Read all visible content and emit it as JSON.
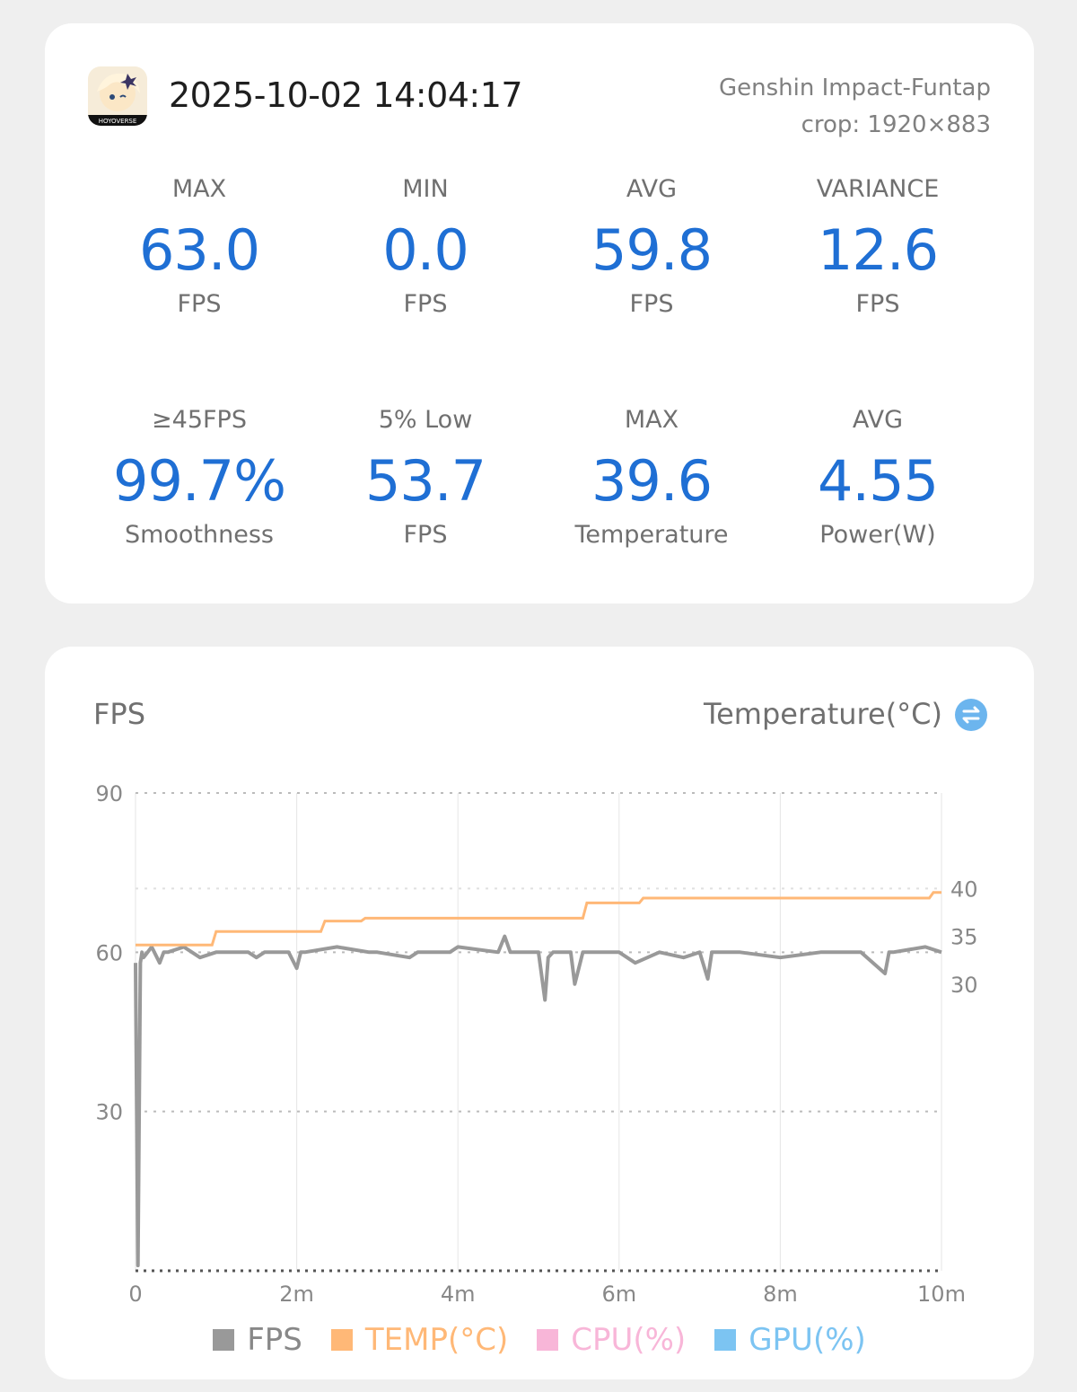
{
  "header": {
    "timestamp": "2025-10-02 14:04:17",
    "game_name": "Genshin Impact-Funtap",
    "crop": "crop: 1920×883",
    "icon_text": "HOYOVERSE"
  },
  "stats": [
    {
      "label": "MAX",
      "value": "63.0",
      "unit": "FPS"
    },
    {
      "label": "MIN",
      "value": "0.0",
      "unit": "FPS"
    },
    {
      "label": "AVG",
      "value": "59.8",
      "unit": "FPS"
    },
    {
      "label": "VARIANCE",
      "value": "12.6",
      "unit": "FPS"
    },
    {
      "label": "≥45FPS",
      "value": "99.7%",
      "unit": "Smoothness"
    },
    {
      "label": "5% Low",
      "value": "53.7",
      "unit": "FPS"
    },
    {
      "label": "MAX",
      "value": "39.6",
      "unit": "Temperature"
    },
    {
      "label": "AVG",
      "value": "4.55",
      "unit": "Power(W)"
    }
  ],
  "chart_header": {
    "left_title": "FPS",
    "right_title": "Temperature(°C)"
  },
  "colors": {
    "accent": "#1f6fd4",
    "fps": "#999999",
    "temp": "#ffb877",
    "cpu": "#f8b6d8",
    "gpu": "#7cc4f2"
  },
  "chart_data": {
    "type": "line",
    "xlabel": "",
    "ylabel": "FPS",
    "y2label": "Temperature(°C)",
    "x_ticks": [
      "0",
      "2m",
      "4m",
      "6m",
      "8m",
      "10m"
    ],
    "x_tick_values": [
      0,
      2,
      4,
      6,
      8,
      10
    ],
    "xlim": [
      0,
      10
    ],
    "y_ticks": [
      "90",
      "60",
      "30"
    ],
    "y_tick_values": [
      90,
      60,
      30,
      0
    ],
    "ylim": [
      0,
      90
    ],
    "y2_ticks": [
      "40",
      "35",
      "30"
    ],
    "y2_tick_values": [
      40,
      35,
      30
    ],
    "y2lim": [
      0,
      50
    ],
    "legend": [
      "FPS",
      "TEMP(°C)",
      "CPU(%)",
      "GPU(%)"
    ],
    "legend_position": "bottom",
    "series": [
      {
        "name": "FPS",
        "x": [
          0,
          0.03,
          0.06,
          0.08,
          0.1,
          0.2,
          0.3,
          0.35,
          0.4,
          0.6,
          0.8,
          1.0,
          1.4,
          1.5,
          1.6,
          1.9,
          2.0,
          2.05,
          2.1,
          2.5,
          2.9,
          3.0,
          3.4,
          3.5,
          3.9,
          4.0,
          4.5,
          4.58,
          4.65,
          5.0,
          5.08,
          5.12,
          5.18,
          5.4,
          5.45,
          5.5,
          5.55,
          6.0,
          6.2,
          6.5,
          6.8,
          7.0,
          7.1,
          7.15,
          7.5,
          8.0,
          8.5,
          9.0,
          9.3,
          9.35,
          9.4,
          9.8,
          10.0
        ],
        "values": [
          58,
          1,
          58,
          60,
          59,
          61,
          58,
          60,
          60,
          61,
          59,
          60,
          60,
          59,
          60,
          60,
          57,
          60,
          60,
          61,
          60,
          60,
          59,
          60,
          60,
          61,
          60,
          63,
          60,
          60,
          51,
          59,
          60,
          60,
          54,
          57,
          60,
          60,
          58,
          60,
          59,
          60,
          55,
          60,
          60,
          59,
          60,
          60,
          56,
          60,
          60,
          61,
          60
        ]
      },
      {
        "name": "TEMP(°C)",
        "x": [
          0,
          0.95,
          1.0,
          2.3,
          2.35,
          2.8,
          2.85,
          5.55,
          5.6,
          6.25,
          6.3,
          9.85,
          9.9,
          10.0
        ],
        "values": [
          34.1,
          34.1,
          35.5,
          35.5,
          36.6,
          36.6,
          36.9,
          36.9,
          38.5,
          38.5,
          39.0,
          39.0,
          39.6,
          39.6
        ]
      }
    ]
  }
}
